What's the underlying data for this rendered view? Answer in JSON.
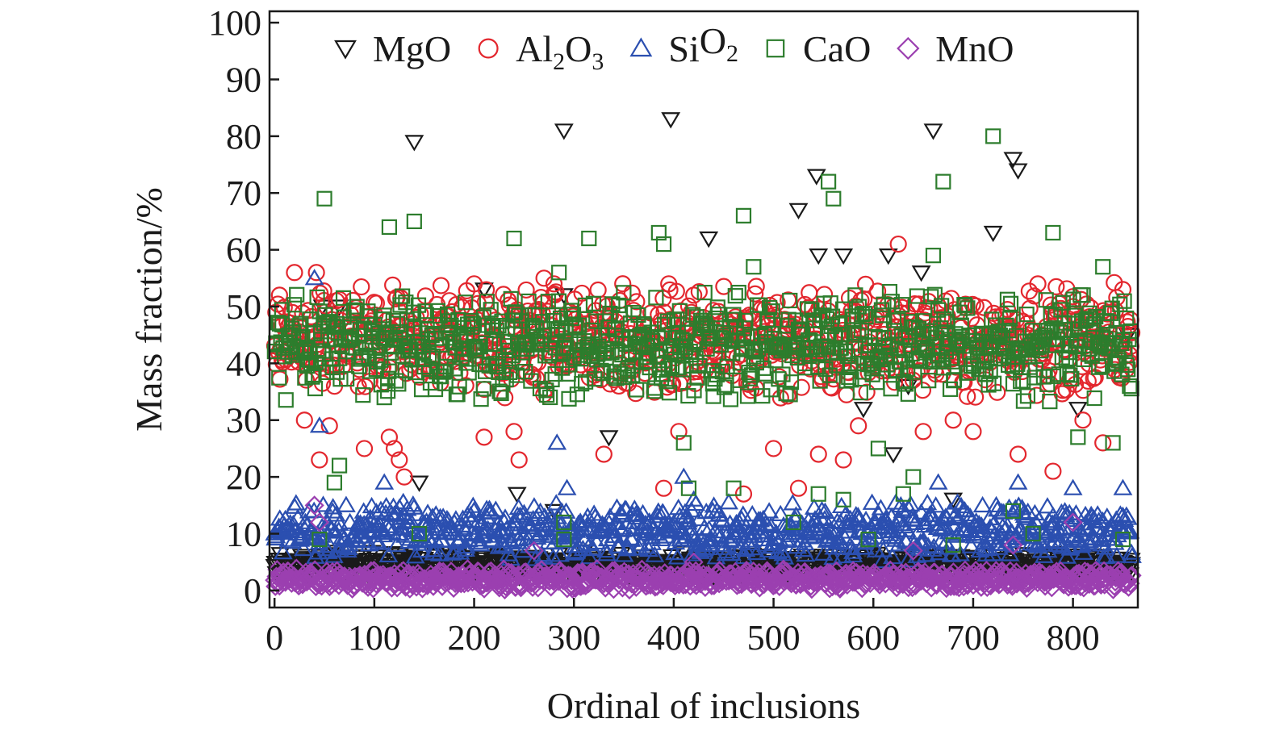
{
  "chart_data": {
    "type": "scatter",
    "title": "",
    "xlabel": "Ordinal of inclusions",
    "ylabel": "Mass fraction/%",
    "xlim": [
      -5,
      865
    ],
    "ylim": [
      -3,
      102
    ],
    "x_ticks": [
      0,
      100,
      200,
      300,
      400,
      500,
      600,
      700,
      800
    ],
    "y_ticks": [
      0,
      10,
      20,
      30,
      40,
      50,
      60,
      70,
      80,
      90,
      100
    ],
    "grid": false,
    "legend_position": "top",
    "n_points_per_series": 860,
    "series": [
      {
        "name": "MgO",
        "legend": {
          "base": "MgO",
          "parts": []
        },
        "marker": "triangle-down",
        "color": "#1a1a1a",
        "typical_range": [
          2,
          7
        ],
        "notable_points": [
          [
            48,
            50
          ],
          [
            65,
            50
          ],
          [
            140,
            79
          ],
          [
            145,
            19
          ],
          [
            210,
            53
          ],
          [
            243,
            17
          ],
          [
            280,
            14
          ],
          [
            290,
            81
          ],
          [
            290,
            52
          ],
          [
            335,
            27
          ],
          [
            397,
            83
          ],
          [
            435,
            62
          ],
          [
            525,
            67
          ],
          [
            543,
            73
          ],
          [
            545,
            59
          ],
          [
            570,
            59
          ],
          [
            590,
            32
          ],
          [
            615,
            59
          ],
          [
            620,
            24
          ],
          [
            635,
            36
          ],
          [
            648,
            56
          ],
          [
            660,
            81
          ],
          [
            680,
            16
          ],
          [
            720,
            63
          ],
          [
            740,
            76
          ],
          [
            745,
            74
          ],
          [
            790,
            6
          ],
          [
            805,
            32
          ],
          [
            855,
            45
          ]
        ]
      },
      {
        "name": "Al2O3",
        "legend": {
          "base": "Al",
          "parts": [
            [
              "sub",
              "2"
            ],
            [
              "text",
              "O"
            ],
            [
              "sub",
              "3"
            ]
          ]
        },
        "marker": "circle",
        "color": "#e3272e",
        "typical_range": [
          33,
          55
        ],
        "notable_points": [
          [
            5,
            52
          ],
          [
            10,
            42
          ],
          [
            20,
            56
          ],
          [
            30,
            30
          ],
          [
            42,
            56
          ],
          [
            45,
            23
          ],
          [
            50,
            49
          ],
          [
            55,
            29
          ],
          [
            90,
            25
          ],
          [
            115,
            27
          ],
          [
            120,
            25
          ],
          [
            125,
            23
          ],
          [
            130,
            20
          ],
          [
            200,
            54
          ],
          [
            210,
            27
          ],
          [
            240,
            28
          ],
          [
            245,
            23
          ],
          [
            270,
            55
          ],
          [
            280,
            54
          ],
          [
            330,
            24
          ],
          [
            390,
            18
          ],
          [
            395,
            54
          ],
          [
            405,
            28
          ],
          [
            420,
            52
          ],
          [
            470,
            17
          ],
          [
            500,
            25
          ],
          [
            525,
            18
          ],
          [
            545,
            24
          ],
          [
            570,
            23
          ],
          [
            585,
            29
          ],
          [
            625,
            61
          ],
          [
            650,
            28
          ],
          [
            680,
            30
          ],
          [
            700,
            28
          ],
          [
            745,
            24
          ],
          [
            780,
            21
          ],
          [
            800,
            50
          ],
          [
            810,
            30
          ],
          [
            830,
            26
          ],
          [
            850,
            53
          ],
          [
            858,
            43
          ]
        ]
      },
      {
        "name": "SiO2",
        "legend": {
          "base": "Si",
          "parts": [
            [
              "text",
              "O"
            ],
            [
              "sub",
              "2"
            ]
          ]
        },
        "marker": "triangle-up",
        "color": "#2b4fb0",
        "typical_range": [
          5,
          16
        ],
        "notable_points": [
          [
            40,
            55
          ],
          [
            45,
            29
          ],
          [
            110,
            19
          ],
          [
            283,
            26
          ],
          [
            293,
            18
          ],
          [
            410,
            20
          ],
          [
            420,
            16
          ],
          [
            665,
            19
          ],
          [
            745,
            19
          ],
          [
            800,
            18
          ],
          [
            850,
            18
          ]
        ]
      },
      {
        "name": "CaO",
        "legend": {
          "base": "CaO",
          "parts": []
        },
        "marker": "square",
        "color": "#2d7d2d",
        "typical_range": [
          33,
          53
        ],
        "notable_points": [
          [
            45,
            9
          ],
          [
            50,
            69
          ],
          [
            60,
            19
          ],
          [
            65,
            22
          ],
          [
            110,
            34
          ],
          [
            115,
            64
          ],
          [
            140,
            65
          ],
          [
            145,
            10
          ],
          [
            240,
            62
          ],
          [
            285,
            56
          ],
          [
            290,
            12
          ],
          [
            290,
            9
          ],
          [
            315,
            62
          ],
          [
            385,
            63
          ],
          [
            390,
            61
          ],
          [
            410,
            26
          ],
          [
            415,
            18
          ],
          [
            460,
            18
          ],
          [
            470,
            66
          ],
          [
            480,
            57
          ],
          [
            520,
            12
          ],
          [
            545,
            17
          ],
          [
            555,
            72
          ],
          [
            560,
            69
          ],
          [
            570,
            16
          ],
          [
            595,
            9
          ],
          [
            605,
            25
          ],
          [
            630,
            17
          ],
          [
            640,
            20
          ],
          [
            660,
            59
          ],
          [
            670,
            72
          ],
          [
            680,
            8
          ],
          [
            720,
            80
          ],
          [
            740,
            14
          ],
          [
            760,
            10
          ],
          [
            780,
            63
          ],
          [
            805,
            27
          ],
          [
            830,
            57
          ],
          [
            840,
            26
          ],
          [
            850,
            9
          ]
        ]
      },
      {
        "name": "MnO",
        "legend": {
          "base": "MnO",
          "parts": []
        },
        "marker": "diamond",
        "color": "#9b3fb0",
        "typical_range": [
          0,
          4
        ],
        "notable_points": [
          [
            40,
            15
          ],
          [
            45,
            12
          ],
          [
            260,
            7
          ],
          [
            420,
            5
          ],
          [
            640,
            7
          ],
          [
            740,
            8
          ],
          [
            800,
            12
          ]
        ]
      }
    ]
  }
}
